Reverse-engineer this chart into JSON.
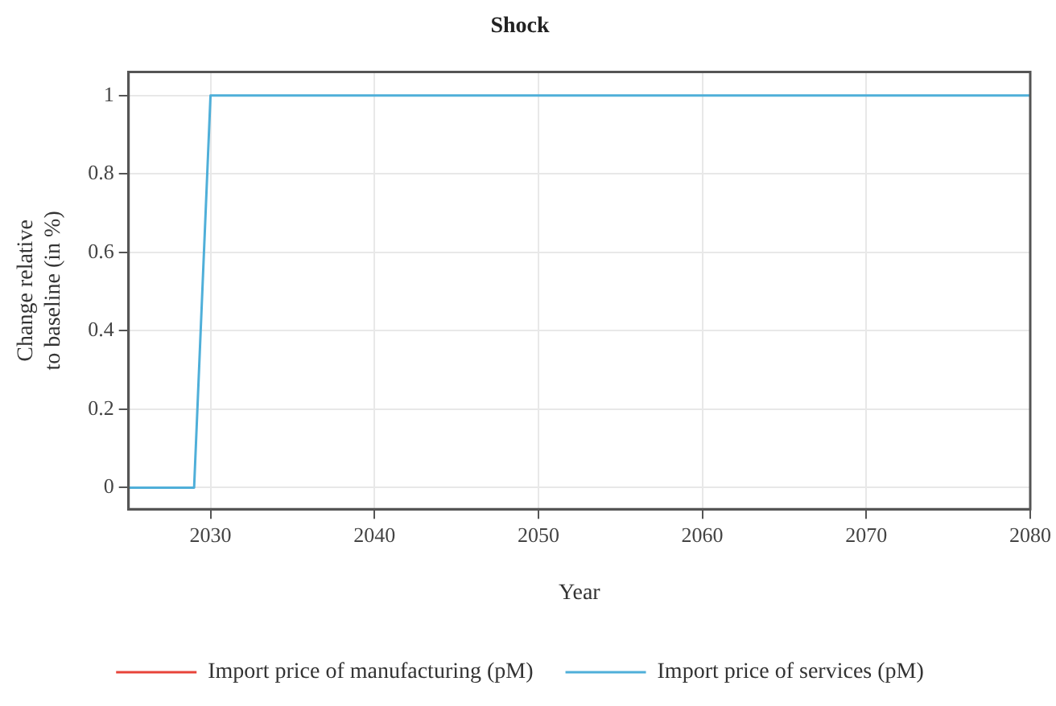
{
  "chart_data": {
    "type": "line",
    "title": "Shock",
    "xlabel": "Year",
    "ylabel": "Change relative to baseline (in %)",
    "x": [
      2025,
      2029,
      2030,
      2080
    ],
    "series": [
      {
        "name": "Import price of manufacturing (pM)",
        "color": "#e8443a",
        "values": [
          null,
          null,
          null,
          null
        ]
      },
      {
        "name": "Import price of services (pM)",
        "color": "#4fafd9",
        "values": [
          0,
          0,
          1,
          1
        ]
      }
    ],
    "xlim": [
      2025,
      2080
    ],
    "xticks": [
      2030,
      2040,
      2050,
      2060,
      2070,
      2080
    ],
    "ylim": [
      -0.055,
      1.06
    ],
    "yticks": [
      0,
      0.2,
      0.4,
      0.6,
      0.8,
      1
    ],
    "grid": true,
    "legend": "bottom",
    "marker": "none",
    "line_style": "solid"
  }
}
